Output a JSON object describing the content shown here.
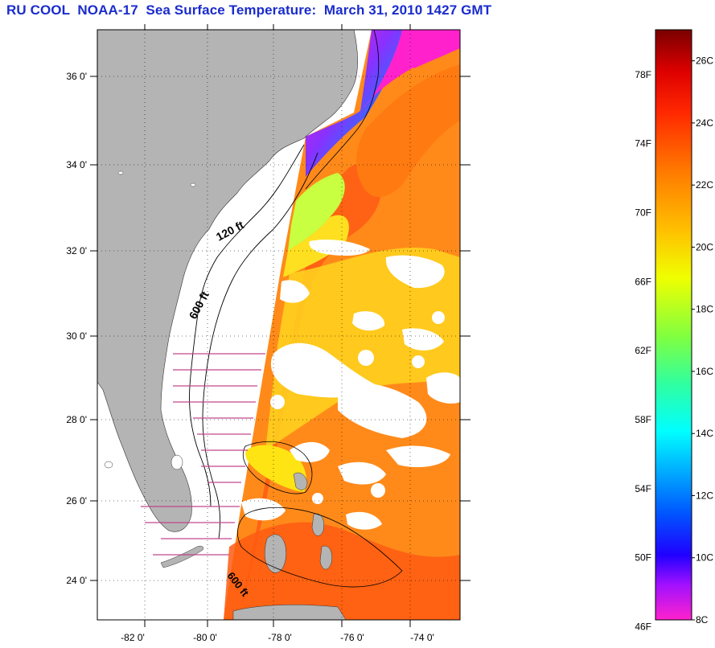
{
  "title": "RU COOL  NOAA-17  Sea Surface Temperature:  March 31, 2010 1427 GMT",
  "map": {
    "lat_ticks": [
      "36 0'",
      "34 0'",
      "32 0'",
      "30 0'",
      "28 0'",
      "26 0'",
      "24 0'"
    ],
    "lon_ticks": [
      "-82 0'",
      "-80 0'",
      "-78 0'",
      "-76 0'",
      "-74 0'"
    ],
    "contour_labels": [
      "120 ft",
      "600 ft",
      "600 ft"
    ],
    "colors": {
      "land": "#b4b4b4",
      "cloud": "#ffffff",
      "sst_warm": "#ff7a10",
      "sst_hot": "#ff4a10",
      "sst_mid": "#ffd21e",
      "sst_cool": "#c8ff40",
      "sst_cold": "#1e78ff",
      "sst_coldest": "#ff22cc"
    }
  },
  "colorbar": {
    "fahrenheit": [
      "78F",
      "74F",
      "70F",
      "66F",
      "62F",
      "58F",
      "54F",
      "50F",
      "46F"
    ],
    "celsius": [
      "26C",
      "24C",
      "22C",
      "20C",
      "18C",
      "16C",
      "14C",
      "12C",
      "10C",
      "8C"
    ],
    "range_c": [
      8,
      27
    ],
    "colors": [
      "#ff22cc",
      "#7a00ff",
      "#0000ff",
      "#00aaff",
      "#00ffff",
      "#40ff80",
      "#c8ff20",
      "#ffff00",
      "#ff9900",
      "#ff3300",
      "#ee0000",
      "#880000"
    ]
  }
}
